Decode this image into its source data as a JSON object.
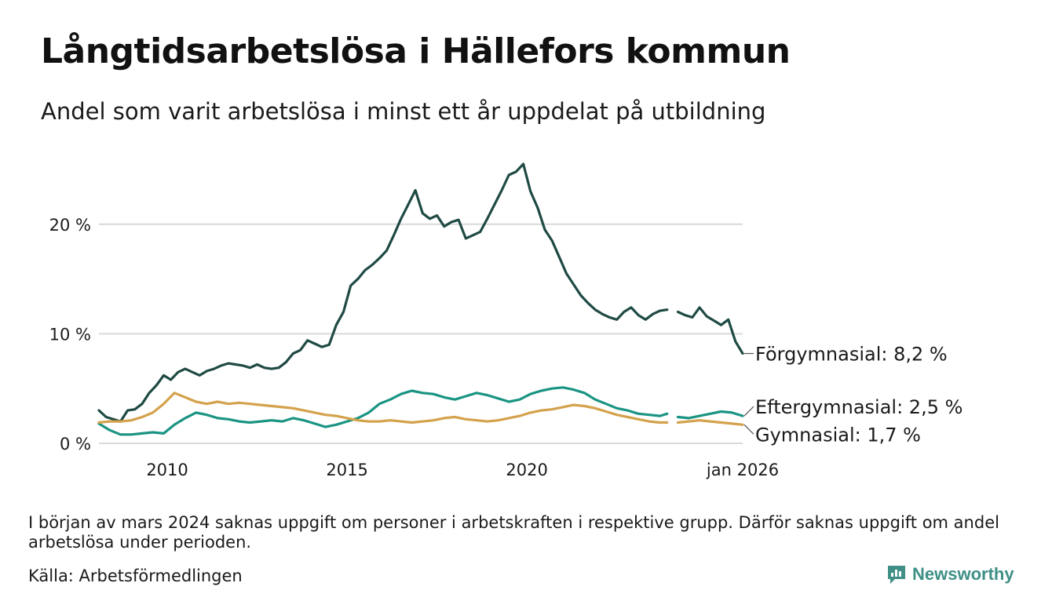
{
  "title": "Långtidsarbetslösa i Hällefors kommun",
  "subtitle": "Andel som varit arbetslösa i minst ett år uppdelat på utbildning",
  "note": "I början av mars 2024 saknas uppgift om personer i arbetskraften i respektive grupp. Därför saknas uppgift om andel arbetslösa under perioden.",
  "source": "Källa: Arbetsförmedlingen",
  "brand": "Newsworthy",
  "icons": {
    "brand_logo": "bar-chart-logo-icon"
  },
  "colors": {
    "forgymnasial": "#1f4a44",
    "eftergymnasial": "#1a9483",
    "gymnasial": "#d4a24c",
    "grid": "#d9d9d9",
    "brand": "#3f8f86"
  },
  "chart_data": {
    "type": "line",
    "title": "Långtidsarbetslösa i Hällefors kommun",
    "subtitle": "Andel som varit arbetslösa i minst ett år uppdelat på utbildning",
    "xlabel": "",
    "ylabel": "",
    "xlim": [
      2008.1,
      2026.0
    ],
    "ylim": [
      0,
      25
    ],
    "y_ticks": [
      0,
      10,
      20
    ],
    "y_tick_labels": [
      "0 %",
      "10 %",
      "20 %"
    ],
    "x_ticks": [
      2010,
      2015,
      2020,
      2026.0
    ],
    "x_tick_labels": [
      "2010",
      "2015",
      "2020",
      "jan 2026"
    ],
    "grid": true,
    "gap": [
      2023.9,
      2024.2
    ],
    "series": [
      {
        "name": "Förgymnasial",
        "end_label": "Förgymnasial: 8,2 %",
        "color_key": "forgymnasial",
        "x": [
          2008.1,
          2008.3,
          2008.5,
          2008.7,
          2008.9,
          2009.1,
          2009.3,
          2009.5,
          2009.7,
          2009.9,
          2010.1,
          2010.3,
          2010.5,
          2010.7,
          2010.9,
          2011.1,
          2011.3,
          2011.5,
          2011.7,
          2011.9,
          2012.1,
          2012.3,
          2012.5,
          2012.7,
          2012.9,
          2013.1,
          2013.3,
          2013.5,
          2013.7,
          2013.9,
          2014.1,
          2014.3,
          2014.5,
          2014.7,
          2014.9,
          2015.1,
          2015.3,
          2015.5,
          2015.7,
          2015.9,
          2016.1,
          2016.3,
          2016.5,
          2016.7,
          2016.9,
          2017.1,
          2017.3,
          2017.5,
          2017.7,
          2017.9,
          2018.1,
          2018.3,
          2018.5,
          2018.7,
          2018.9,
          2019.1,
          2019.3,
          2019.5,
          2019.7,
          2019.9,
          2020.1,
          2020.3,
          2020.5,
          2020.7,
          2020.9,
          2021.1,
          2021.3,
          2021.5,
          2021.7,
          2021.9,
          2022.1,
          2022.3,
          2022.5,
          2022.7,
          2022.9,
          2023.1,
          2023.3,
          2023.5,
          2023.7,
          2023.9,
          2024.2,
          2024.4,
          2024.6,
          2024.8,
          2025.0,
          2025.2,
          2025.4,
          2025.6,
          2025.8,
          2026.0
        ],
        "values": [
          3.0,
          2.4,
          2.2,
          2.0,
          3.0,
          3.1,
          3.6,
          4.6,
          5.3,
          6.2,
          5.8,
          6.5,
          6.8,
          6.5,
          6.2,
          6.6,
          6.8,
          7.1,
          7.3,
          7.2,
          7.1,
          6.9,
          7.2,
          6.9,
          6.8,
          6.9,
          7.4,
          8.2,
          8.5,
          9.4,
          9.1,
          8.8,
          9.0,
          10.8,
          12.0,
          14.4,
          15.0,
          15.8,
          16.3,
          16.9,
          17.6,
          19.0,
          20.5,
          21.8,
          23.1,
          21.0,
          20.5,
          20.8,
          19.8,
          20.2,
          20.4,
          18.7,
          19.0,
          19.3,
          20.5,
          21.8,
          23.1,
          24.5,
          24.8,
          25.5,
          23.0,
          21.5,
          19.5,
          18.5,
          17.0,
          15.5,
          14.5,
          13.5,
          12.8,
          12.2,
          11.8,
          11.5,
          11.3,
          12.0,
          12.4,
          11.7,
          11.3,
          11.8,
          12.1,
          12.2,
          12.0,
          11.7,
          11.5,
          12.4,
          11.6,
          11.2,
          10.8,
          11.3,
          9.3,
          8.2
        ],
        "values_note": "approximate readings"
      },
      {
        "name": "Eftergymnasial",
        "end_label": "Eftergymnasial: 2,5 %",
        "color_key": "eftergymnasial",
        "x": [
          2008.1,
          2008.4,
          2008.7,
          2009.0,
          2009.3,
          2009.6,
          2009.9,
          2010.2,
          2010.5,
          2010.8,
          2011.1,
          2011.4,
          2011.7,
          2012.0,
          2012.3,
          2012.6,
          2012.9,
          2013.2,
          2013.5,
          2013.8,
          2014.1,
          2014.4,
          2014.7,
          2015.0,
          2015.3,
          2015.6,
          2015.9,
          2016.2,
          2016.5,
          2016.8,
          2017.1,
          2017.4,
          2017.7,
          2018.0,
          2018.3,
          2018.6,
          2018.9,
          2019.2,
          2019.5,
          2019.8,
          2020.1,
          2020.4,
          2020.7,
          2021.0,
          2021.3,
          2021.6,
          2021.9,
          2022.2,
          2022.5,
          2022.8,
          2023.1,
          2023.4,
          2023.7,
          2023.9,
          2024.2,
          2024.5,
          2024.8,
          2025.1,
          2025.4,
          2025.7,
          2026.0
        ],
        "values": [
          1.8,
          1.2,
          0.8,
          0.8,
          0.9,
          1.0,
          0.9,
          1.7,
          2.3,
          2.8,
          2.6,
          2.3,
          2.2,
          2.0,
          1.9,
          2.0,
          2.1,
          2.0,
          2.3,
          2.1,
          1.8,
          1.5,
          1.7,
          2.0,
          2.3,
          2.8,
          3.6,
          4.0,
          4.5,
          4.8,
          4.6,
          4.5,
          4.2,
          4.0,
          4.3,
          4.6,
          4.4,
          4.1,
          3.8,
          4.0,
          4.5,
          4.8,
          5.0,
          5.1,
          4.9,
          4.6,
          4.0,
          3.6,
          3.2,
          3.0,
          2.7,
          2.6,
          2.5,
          2.7,
          2.4,
          2.3,
          2.5,
          2.7,
          2.9,
          2.8,
          2.5
        ],
        "values_note": "approximate readings"
      },
      {
        "name": "Gymnasial",
        "end_label": "Gymnasial: 1,7 %",
        "color_key": "gymnasial",
        "x": [
          2008.1,
          2008.4,
          2008.7,
          2009.0,
          2009.3,
          2009.6,
          2009.9,
          2010.2,
          2010.5,
          2010.8,
          2011.1,
          2011.4,
          2011.7,
          2012.0,
          2012.3,
          2012.6,
          2012.9,
          2013.2,
          2013.5,
          2013.8,
          2014.1,
          2014.4,
          2014.7,
          2015.0,
          2015.3,
          2015.6,
          2015.9,
          2016.2,
          2016.5,
          2016.8,
          2017.1,
          2017.4,
          2017.7,
          2018.0,
          2018.3,
          2018.6,
          2018.9,
          2019.2,
          2019.5,
          2019.8,
          2020.1,
          2020.4,
          2020.7,
          2021.0,
          2021.3,
          2021.6,
          2021.9,
          2022.2,
          2022.5,
          2022.8,
          2023.1,
          2023.4,
          2023.7,
          2023.9,
          2024.2,
          2024.5,
          2024.8,
          2025.1,
          2025.4,
          2025.7,
          2026.0
        ],
        "values": [
          1.9,
          2.0,
          2.0,
          2.1,
          2.4,
          2.8,
          3.6,
          4.6,
          4.2,
          3.8,
          3.6,
          3.8,
          3.6,
          3.7,
          3.6,
          3.5,
          3.4,
          3.3,
          3.2,
          3.0,
          2.8,
          2.6,
          2.5,
          2.3,
          2.1,
          2.0,
          2.0,
          2.1,
          2.0,
          1.9,
          2.0,
          2.1,
          2.3,
          2.4,
          2.2,
          2.1,
          2.0,
          2.1,
          2.3,
          2.5,
          2.8,
          3.0,
          3.1,
          3.3,
          3.5,
          3.4,
          3.2,
          2.9,
          2.6,
          2.4,
          2.2,
          2.0,
          1.9,
          1.9,
          1.9,
          2.0,
          2.1,
          2.0,
          1.9,
          1.8,
          1.7
        ],
        "values_note": "approximate readings"
      }
    ]
  }
}
